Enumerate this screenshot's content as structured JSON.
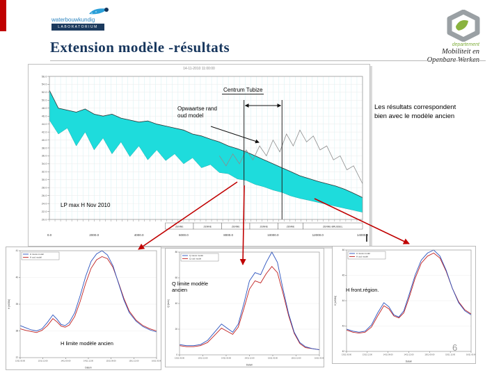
{
  "slide": {
    "title": "Extension modèle -résultats",
    "page_number": "6",
    "side_note": "Les résultats correspondent\nbien avec le modèle ancien"
  },
  "logo_left": {
    "name": "waterbouwkundig",
    "sub": "LABORATORIUM"
  },
  "logo_right": {
    "dept": "departement",
    "line1": "Mobiliteit en",
    "line2": "Openbare Werken"
  },
  "colors": {
    "accent_red": "#c00000",
    "band_cyan": "#1edcdc",
    "title_navy": "#17365d",
    "line_new": "#2a52be",
    "line_old": "#c02020"
  },
  "chart_data": [
    {
      "type": "area",
      "title": "14-11-2010 11:00:00",
      "annotations": {
        "centrum": "Centrum Tubize",
        "opwaartse": "Opwaartse rand\noud model",
        "lp": "LP max H Nov 2010"
      },
      "xlim": [
        0,
        14000
      ],
      "ylim": [
        20,
        56
      ],
      "x_ticks": [
        "0.0",
        "2000.0",
        "4000.0",
        "6000.0",
        "8000.0",
        "10000.0",
        "12000.0",
        "14000.0"
      ],
      "y_ticks": [
        "56.0",
        "54.0",
        "52.0",
        "50.0",
        "48.0",
        "46.0",
        "44.0",
        "42.0",
        "40.0",
        "38.0",
        "36.0",
        "34.0",
        "32.0",
        "30.0",
        "28.0",
        "26.0",
        "24.0",
        "22.0",
        "20.0"
      ],
      "marker_x": [
        8700,
        10400
      ],
      "band_color": "#1edcdc",
      "reaches": [
        {
          "label": "ZENNE",
          "f0": 0.37,
          "f1": 0.46
        },
        {
          "label": "ZENNE",
          "f0": 0.46,
          "f1": 0.55
        },
        {
          "label": "ZENNE",
          "f0": 0.55,
          "f1": 0.64
        },
        {
          "label": "ZENNE",
          "f0": 0.64,
          "f1": 0.73
        },
        {
          "label": "ZENNE",
          "f0": 0.73,
          "f1": 0.81
        },
        {
          "label": "ZENNE-BRUSSEL",
          "f0": 0.81,
          "f1": 1.0
        }
      ],
      "x": [
        0,
        400,
        800,
        1200,
        1600,
        2000,
        2400,
        2800,
        3200,
        3600,
        4000,
        4400,
        4800,
        5200,
        5600,
        6000,
        6400,
        6800,
        7200,
        7600,
        8000,
        8400,
        8800,
        9200,
        9600,
        10000,
        10400,
        10800,
        11200,
        11600,
        12000,
        12400,
        12800,
        13200,
        13600,
        14000
      ],
      "upper": [
        52.5,
        48,
        47.5,
        47,
        47.8,
        46.5,
        46,
        46.5,
        45.5,
        45,
        44.5,
        44.8,
        44,
        43.5,
        43,
        42.5,
        41.5,
        41,
        40.2,
        39.5,
        38.5,
        37.8,
        37,
        36,
        35,
        34,
        33,
        32,
        31,
        30.3,
        29.6,
        29,
        28.4,
        27.6,
        26.6,
        25.5
      ],
      "lower": [
        45,
        41.5,
        43,
        38.5,
        42,
        37.5,
        40.5,
        36.5,
        39.5,
        35.8,
        38.5,
        35,
        37.5,
        34.8,
        36.5,
        34,
        35.5,
        33,
        33.8,
        31.8,
        31.5,
        30.2,
        29.8,
        28.8,
        28.2,
        27.4,
        26.8,
        25.9,
        25.3,
        24.8,
        24.3,
        23.8,
        23.3,
        22.8,
        22.3,
        21.8
      ],
      "ground": {
        "x": [
          7600,
          7900,
          8200,
          8500,
          8800,
          9100,
          9400,
          9700,
          10000,
          10300,
          10600,
          10900,
          11200,
          11500,
          11800,
          12100,
          12400,
          12700,
          13000,
          13300,
          13600,
          14000
        ],
        "y": [
          36,
          33.5,
          36.5,
          34,
          37.5,
          35,
          38.5,
          36,
          40,
          37,
          41.5,
          38.5,
          42.5,
          39.5,
          41,
          37.5,
          38.5,
          35,
          36,
          32.5,
          33.5,
          29
        ]
      }
    },
    {
      "type": "line",
      "label": "H limite modèle ancien",
      "xlabel": "Datum",
      "ylabel": "H [mTAW]",
      "x_ticks": [
        "13/11 00:00",
        "13/11 12:00",
        "14/11 00:00",
        "14/11 12:00",
        "15/11 00:00",
        "15/11 12:00",
        "16/11 00:00"
      ],
      "y_ticks": [
        "41",
        "40",
        "39",
        "38",
        "37"
      ],
      "series": [
        {
          "name": "H nieuw model",
          "color": "#2a52be",
          "x": [
            0,
            0.04,
            0.08,
            0.12,
            0.16,
            0.2,
            0.24,
            0.27,
            0.3,
            0.33,
            0.36,
            0.4,
            0.44,
            0.48,
            0.52,
            0.56,
            0.6,
            0.64,
            0.68,
            0.72,
            0.76,
            0.8,
            0.85,
            0.9,
            0.95,
            1
          ],
          "y": [
            0.3,
            0.28,
            0.26,
            0.25,
            0.27,
            0.33,
            0.4,
            0.36,
            0.31,
            0.3,
            0.33,
            0.42,
            0.58,
            0.76,
            0.9,
            0.97,
            1,
            0.96,
            0.86,
            0.7,
            0.54,
            0.42,
            0.34,
            0.29,
            0.26,
            0.24
          ]
        },
        {
          "name": "H oud model",
          "color": "#c02020",
          "x": [
            0,
            0.04,
            0.08,
            0.12,
            0.16,
            0.2,
            0.24,
            0.27,
            0.3,
            0.33,
            0.36,
            0.4,
            0.44,
            0.48,
            0.52,
            0.56,
            0.6,
            0.64,
            0.68,
            0.72,
            0.76,
            0.8,
            0.85,
            0.9,
            0.95,
            1
          ],
          "y": [
            0.27,
            0.255,
            0.245,
            0.235,
            0.255,
            0.3,
            0.365,
            0.335,
            0.295,
            0.285,
            0.305,
            0.385,
            0.525,
            0.695,
            0.835,
            0.915,
            0.945,
            0.925,
            0.845,
            0.705,
            0.555,
            0.435,
            0.35,
            0.3,
            0.27,
            0.25
          ]
        }
      ]
    },
    {
      "type": "line",
      "label": "Q limite modèle\nancien",
      "xlabel": "Datum",
      "ylabel": "Q [m³/s]",
      "x_ticks": [
        "13/11 00:00",
        "13/11 12:00",
        "14/11 00:00",
        "14/11 12:00",
        "15/11 00:00",
        "15/11 12:00",
        "16/11 00:00"
      ],
      "y_ticks": [
        "80",
        "60",
        "40",
        "20",
        "0"
      ],
      "series": [
        {
          "name": "Q nieuw model",
          "color": "#2a52be",
          "x": [
            0,
            0.05,
            0.1,
            0.15,
            0.2,
            0.25,
            0.3,
            0.34,
            0.38,
            0.42,
            0.46,
            0.5,
            0.54,
            0.58,
            0.62,
            0.66,
            0.7,
            0.74,
            0.78,
            0.82,
            0.86,
            0.9,
            0.95,
            1
          ],
          "y": [
            0.1,
            0.09,
            0.09,
            0.1,
            0.14,
            0.22,
            0.3,
            0.26,
            0.22,
            0.3,
            0.5,
            0.72,
            0.8,
            0.78,
            0.9,
            1,
            0.9,
            0.64,
            0.4,
            0.22,
            0.12,
            0.08,
            0.06,
            0.05
          ]
        },
        {
          "name": "Q oud model",
          "color": "#c02020",
          "x": [
            0,
            0.05,
            0.1,
            0.15,
            0.2,
            0.25,
            0.3,
            0.34,
            0.38,
            0.42,
            0.46,
            0.5,
            0.54,
            0.58,
            0.62,
            0.66,
            0.7,
            0.74,
            0.78,
            0.82,
            0.86,
            0.9,
            0.95,
            1
          ],
          "y": [
            0.09,
            0.08,
            0.08,
            0.09,
            0.12,
            0.19,
            0.26,
            0.23,
            0.2,
            0.27,
            0.45,
            0.64,
            0.72,
            0.7,
            0.79,
            0.86,
            0.8,
            0.6,
            0.38,
            0.21,
            0.11,
            0.07,
            0.06,
            0.05
          ]
        }
      ]
    },
    {
      "type": "line",
      "label": "H front.région.",
      "xlabel": "Datum",
      "ylabel": "H [mTAW]",
      "x_ticks": [
        "13/11 00:00",
        "13/11 12:00",
        "14/11 00:00",
        "14/11 12:00",
        "15/11 00:00",
        "15/11 12:00",
        "16/11 00:00"
      ],
      "y_ticks": [
        "46",
        "45",
        "44",
        "43",
        "42"
      ],
      "series": [
        {
          "name": "H nieuw model",
          "color": "#2a52be",
          "x": [
            0,
            0.05,
            0.1,
            0.15,
            0.2,
            0.25,
            0.3,
            0.34,
            0.38,
            0.42,
            0.46,
            0.5,
            0.55,
            0.6,
            0.65,
            0.7,
            0.75,
            0.8,
            0.85,
            0.9,
            0.95,
            1
          ],
          "y": [
            0.22,
            0.2,
            0.19,
            0.2,
            0.26,
            0.38,
            0.48,
            0.44,
            0.36,
            0.34,
            0.4,
            0.55,
            0.75,
            0.9,
            0.97,
            1,
            0.94,
            0.8,
            0.62,
            0.48,
            0.4,
            0.36
          ]
        },
        {
          "name": "H oud model",
          "color": "#c02020",
          "x": [
            0,
            0.05,
            0.1,
            0.15,
            0.2,
            0.25,
            0.3,
            0.34,
            0.38,
            0.42,
            0.46,
            0.5,
            0.55,
            0.6,
            0.65,
            0.7,
            0.75,
            0.8,
            0.85,
            0.9,
            0.95,
            1
          ],
          "y": [
            0.21,
            0.19,
            0.18,
            0.19,
            0.24,
            0.35,
            0.45,
            0.42,
            0.35,
            0.33,
            0.38,
            0.52,
            0.72,
            0.87,
            0.94,
            0.97,
            0.92,
            0.79,
            0.62,
            0.49,
            0.41,
            0.37
          ]
        }
      ]
    }
  ]
}
